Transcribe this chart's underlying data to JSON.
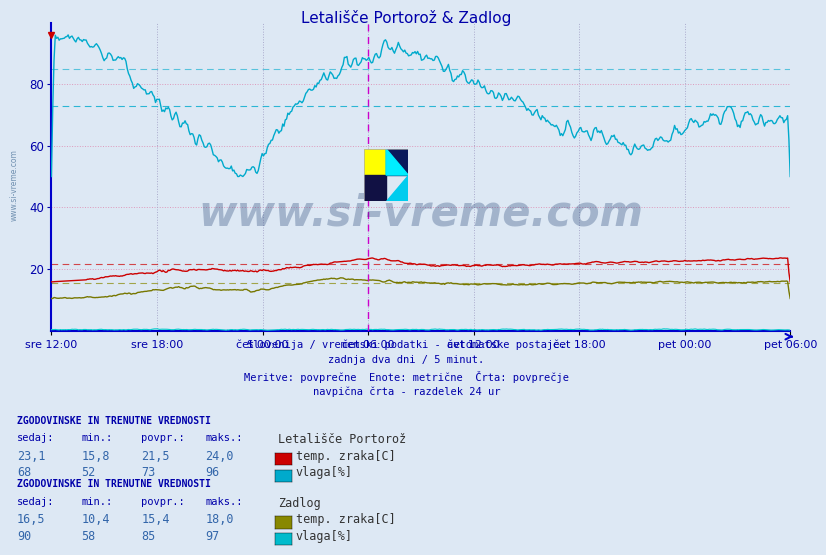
{
  "title": "Letališče Portorož & Zadlog",
  "bg_color": "#dde8f4",
  "ylim": [
    0,
    100
  ],
  "yticks": [
    20,
    40,
    60,
    80
  ],
  "xtick_labels": [
    "sre 12:00",
    "sre 18:00",
    "čet 00:00",
    "čet 06:00",
    "čet 12:00",
    "čet 18:00",
    "pet 00:00",
    "pet 06:00"
  ],
  "n_points": 576,
  "subtitle_lines": [
    "Slovenija / vremenski podatki - avtomatske postaje.",
    "zadnja dva dni / 5 minut.",
    "Meritve: povprečne  Enote: metrične  Črta: povprečje",
    "navpična črta - razdelek 24 ur"
  ],
  "portoroz_label": "Letališče Portorož",
  "zadlog_label": "Zadlog",
  "watermark": "www.si-vreme.com",
  "axis_color": "#0000cc",
  "tick_color": "#0000aa",
  "grid_color_h": "#cc99cc",
  "grid_color_v": "#aaaacc",
  "avg_dashed_cyan": "#00aacc",
  "avg_dashed_red": "#cc0000",
  "avg_dashed_olive": "#888800",
  "magenta_vline_color": "#cc00cc",
  "line_cyan": "#00aacc",
  "line_red": "#cc0000",
  "line_olive": "#777700",
  "line_cyan2": "#00cccc",
  "portoroz_temp_sedaj": "23,1",
  "portoroz_temp_min": "15,8",
  "portoroz_temp_povpr": "21,5",
  "portoroz_temp_maks": "24,0",
  "portoroz_temp_povpr_val": 21.5,
  "portoroz_vlaga_sedaj": "68",
  "portoroz_vlaga_min": "52",
  "portoroz_vlaga_povpr": "73",
  "portoroz_vlaga_maks": "96",
  "portoroz_vlaga_povpr_val": 73,
  "zadlog_temp_sedaj": "16,5",
  "zadlog_temp_min": "10,4",
  "zadlog_temp_povpr": "15,4",
  "zadlog_temp_maks": "18,0",
  "zadlog_temp_povpr_val": 15.4,
  "zadlog_vlaga_sedaj": "90",
  "zadlog_vlaga_min": "58",
  "zadlog_vlaga_povpr": "85",
  "zadlog_vlaga_maks": "97",
  "zadlog_vlaga_povpr_val": 85,
  "swatch_red": "#cc0000",
  "swatch_cyan": "#00aacc",
  "swatch_olive": "#888800",
  "swatch_cyan2": "#00bbcc"
}
